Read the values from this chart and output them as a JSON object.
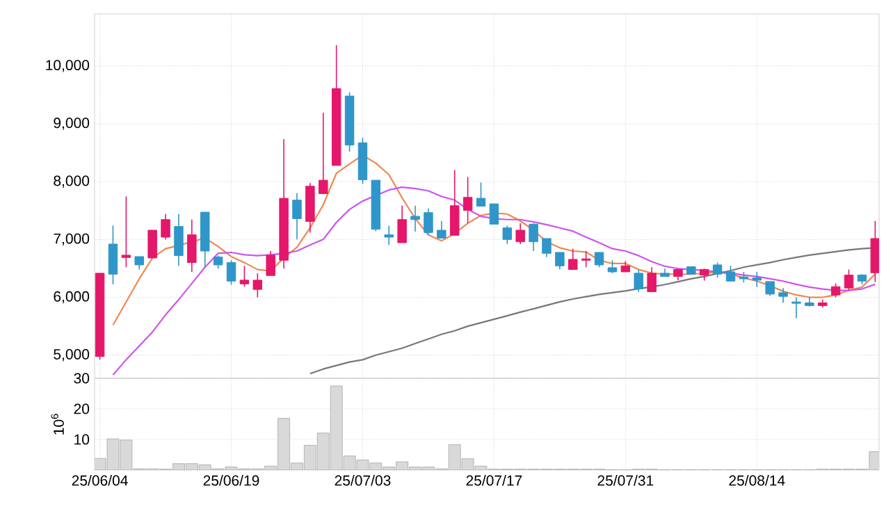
{
  "chart_data": [
    {
      "type": "candlestick",
      "categories": [
        null,
        null,
        null,
        null,
        null,
        null,
        null,
        null,
        null,
        null,
        null,
        null,
        null,
        null,
        null,
        null,
        null,
        null,
        null,
        null,
        null,
        null,
        null,
        null,
        null,
        null,
        null,
        null,
        null,
        null,
        null,
        null,
        null,
        null,
        null,
        null,
        null,
        null,
        null,
        null,
        null,
        null,
        null,
        null,
        null,
        null,
        null,
        null,
        null,
        null,
        null,
        null,
        null,
        null,
        null,
        null,
        null,
        null,
        null,
        null
      ],
      "ohlc": [
        [
          4976,
          6416,
          4920,
          6416
        ],
        [
          6920,
          7240,
          6224,
          6400
        ],
        [
          6688,
          7744,
          6520,
          6728
        ],
        [
          6704,
          6704,
          6480,
          6560
        ],
        [
          6680,
          7160,
          6680,
          7160
        ],
        [
          7040,
          7440,
          7000,
          7344
        ],
        [
          7224,
          7440,
          6544,
          6720
        ],
        [
          6600,
          7344,
          6440,
          7080
        ],
        [
          7472,
          7472,
          6520,
          6800
        ],
        [
          6696,
          6720,
          6496,
          6560
        ],
        [
          6600,
          6640,
          6216,
          6280
        ],
        [
          6232,
          6544,
          6184,
          6296
        ],
        [
          6136,
          6416,
          6000,
          6296
        ],
        [
          6376,
          6800,
          6376,
          6728
        ],
        [
          6640,
          8736,
          6496,
          7712
        ],
        [
          7680,
          7800,
          7000,
          7360
        ],
        [
          7312,
          7976,
          7120,
          7920
        ],
        [
          7792,
          9192,
          7792,
          8024
        ],
        [
          8280,
          10360,
          8280,
          9608
        ],
        [
          9480,
          9544,
          8520,
          8632
        ],
        [
          8672,
          8760,
          7960,
          8032
        ],
        [
          8024,
          8024,
          7144,
          7176
        ],
        [
          7080,
          7240,
          6904,
          7040
        ],
        [
          6944,
          7584,
          6944,
          7344
        ],
        [
          7400,
          7584,
          7136,
          7344
        ],
        [
          7464,
          7536,
          7080,
          7120
        ],
        [
          7160,
          7320,
          7024,
          7024
        ],
        [
          7072,
          8200,
          7072,
          7584
        ],
        [
          7504,
          8080,
          7280,
          7728
        ],
        [
          7712,
          7984,
          7576,
          7576
        ],
        [
          7616,
          7616,
          7264,
          7264
        ],
        [
          7200,
          7240,
          6920,
          7000
        ],
        [
          6960,
          7280,
          6920,
          7160
        ],
        [
          7264,
          7280,
          6800,
          6960
        ],
        [
          7016,
          7016,
          6696,
          6760
        ],
        [
          6776,
          6776,
          6480,
          6544
        ],
        [
          6480,
          6840,
          6480,
          6656
        ],
        [
          6640,
          6800,
          6520,
          6664
        ],
        [
          6776,
          6776,
          6520,
          6560
        ],
        [
          6512,
          6640,
          6416,
          6440
        ],
        [
          6440,
          6624,
          6440,
          6544
        ],
        [
          6416,
          6480,
          6096,
          6144
        ],
        [
          6096,
          6520,
          6096,
          6416
        ],
        [
          6416,
          6496,
          6360,
          6360
        ],
        [
          6360,
          6496,
          6296,
          6480
        ],
        [
          6528,
          6528,
          6400,
          6400
        ],
        [
          6384,
          6496,
          6288,
          6480
        ],
        [
          6560,
          6600,
          6336,
          6400
        ],
        [
          6440,
          6544,
          6280,
          6280
        ],
        [
          6352,
          6440,
          6256,
          6320
        ],
        [
          6336,
          6440,
          6176,
          6296
        ],
        [
          6272,
          6272,
          6024,
          6056
        ],
        [
          6080,
          6160,
          5904,
          6016
        ],
        [
          5920,
          6000,
          5640,
          5896
        ],
        [
          5904,
          6000,
          5840,
          5856
        ],
        [
          5856,
          5960,
          5824,
          5904
        ],
        [
          6040,
          6240,
          6000,
          6184
        ],
        [
          6160,
          6480,
          6120,
          6384
        ],
        [
          6384,
          6400,
          6224,
          6280
        ],
        [
          6424,
          7320,
          6264,
          7016
        ]
      ],
      "colors": [
        "#e5176a",
        "#2f96c9",
        "#e5176a",
        "#2f96c9",
        "#e5176a",
        "#e5176a",
        "#2f96c9",
        "#e5176a",
        "#2f96c9",
        "#2f96c9",
        "#2f96c9",
        "#e5176a",
        "#e5176a",
        "#e5176a",
        "#e5176a",
        "#2f96c9",
        "#e5176a",
        "#e5176a",
        "#e5176a",
        "#2f96c9",
        "#2f96c9",
        "#2f96c9",
        "#2f96c9",
        "#e5176a",
        "#2f96c9",
        "#2f96c9",
        "#2f96c9",
        "#e5176a",
        "#e5176a",
        "#2f96c9",
        "#2f96c9",
        "#2f96c9",
        "#e5176a",
        "#2f96c9",
        "#2f96c9",
        "#2f96c9",
        "#e5176a",
        "#e5176a",
        "#2f96c9",
        "#2f96c9",
        "#e5176a",
        "#2f96c9",
        "#e5176a",
        "#2f96c9",
        "#e5176a",
        "#2f96c9",
        "#e5176a",
        "#2f96c9",
        "#2f96c9",
        "#2f96c9",
        "#2f96c9",
        "#2f96c9",
        "#2f96c9",
        "#2f96c9",
        "#2f96c9",
        "#e5176a",
        "#e5176a",
        "#e5176a",
        "#2f96c9",
        "#e5176a"
      ],
      "series": [
        {
          "type": "line",
          "color": "#f0884f",
          "values": [
            null,
            5520,
            5920,
            6320,
            6680,
            6840,
            6896,
            6960,
            7024,
            6880,
            6704,
            6600,
            6480,
            6456,
            6680,
            6864,
            7200,
            7600,
            8144,
            8304,
            8456,
            8320,
            8120,
            7720,
            7360,
            7080,
            6976,
            7104,
            7280,
            7416,
            7456,
            7440,
            7320,
            7160,
            6960,
            6856,
            6800,
            6784,
            6640,
            6584,
            6584,
            6480,
            6416,
            6400,
            6400,
            6400,
            6416,
            6440,
            6400,
            6336,
            6280,
            6200,
            6104,
            6040,
            6000,
            6000,
            6040,
            6120,
            6176,
            6400
          ]
        },
        {
          "type": "line",
          "color": "#cc55ee",
          "values": [
            null,
            4656,
            4920,
            5160,
            5400,
            5696,
            5960,
            6240,
            6520,
            6760,
            6776,
            6736,
            6720,
            6736,
            6760,
            6800,
            6904,
            7000,
            7296,
            7520,
            7664,
            7760,
            7856,
            7904,
            7880,
            7840,
            7744,
            7680,
            7520,
            7400,
            7360,
            7344,
            7344,
            7304,
            7256,
            7200,
            7144,
            7040,
            6944,
            6840,
            6800,
            6720,
            6616,
            6536,
            6496,
            6480,
            6464,
            6440,
            6416,
            6384,
            6360,
            6320,
            6280,
            6224,
            6176,
            6144,
            6120,
            6120,
            6144,
            6224
          ]
        },
        {
          "type": "line",
          "color": "#777777",
          "values": [
            null,
            null,
            null,
            null,
            null,
            null,
            null,
            null,
            null,
            null,
            null,
            null,
            null,
            null,
            null,
            null,
            4680,
            4760,
            4820,
            4880,
            4920,
            5000,
            5060,
            5120,
            5200,
            5280,
            5360,
            5420,
            5500,
            5560,
            5620,
            5680,
            5744,
            5800,
            5860,
            5920,
            5970,
            6010,
            6050,
            6080,
            6110,
            6150,
            6180,
            6220,
            6270,
            6320,
            6360,
            6410,
            6460,
            6520,
            6560,
            6600,
            6650,
            6690,
            6730,
            6760,
            6790,
            6820,
            6840,
            6856
          ]
        }
      ],
      "ylim": [
        4600,
        10900
      ],
      "yticks": [
        {
          "value": 5000,
          "label": "5,000"
        },
        {
          "value": 6000,
          "label": "6,000"
        },
        {
          "value": 7000,
          "label": "7,000"
        },
        {
          "value": 8000,
          "label": "8,000"
        },
        {
          "value": 9000,
          "label": "9,000"
        },
        {
          "value": 10000,
          "label": "10,000"
        }
      ],
      "grid": true,
      "tick_labels": "y"
    },
    {
      "type": "bar",
      "categories": [
        "25/06/04",
        null,
        null,
        null,
        null,
        null,
        null,
        null,
        null,
        null,
        "25/06/19",
        null,
        null,
        null,
        null,
        null,
        null,
        null,
        null,
        null,
        "25/07/03",
        null,
        null,
        null,
        null,
        null,
        null,
        null,
        null,
        null,
        "25/07/17",
        null,
        null,
        null,
        null,
        null,
        null,
        null,
        null,
        null,
        "25/07/31",
        null,
        null,
        null,
        null,
        null,
        null,
        null,
        null,
        null,
        "25/08/14",
        null,
        null,
        null,
        null,
        null,
        null,
        null,
        null,
        null
      ],
      "values": [
        3.8,
        10.2,
        9.8,
        0.4,
        0.4,
        0.3,
        2.1,
        2.1,
        1.7,
        0.4,
        1.0,
        0.4,
        0.4,
        1.3,
        16.9,
        2.3,
        8.1,
        12.1,
        27.5,
        4.6,
        3.3,
        2.3,
        1.0,
        2.7,
        1.0,
        1.0,
        0.4,
        8.3,
        3.7,
        1.3,
        0.3,
        0.3,
        0.3,
        0.3,
        0.3,
        0.3,
        0.3,
        0.3,
        0.3,
        0.1,
        0.1,
        0.3,
        0.3,
        0.1,
        0.1,
        0.1,
        0.1,
        0.1,
        0.1,
        0.1,
        0.1,
        0.1,
        0.1,
        0.1,
        0.1,
        0.3,
        0.3,
        0.3,
        0.3,
        6.0
      ],
      "color": "#d9d9d9",
      "ylabel": "10$^{6}$",
      "ylim": [
        0,
        30
      ],
      "yticks": [
        10,
        20,
        30
      ],
      "grid": true
    }
  ]
}
